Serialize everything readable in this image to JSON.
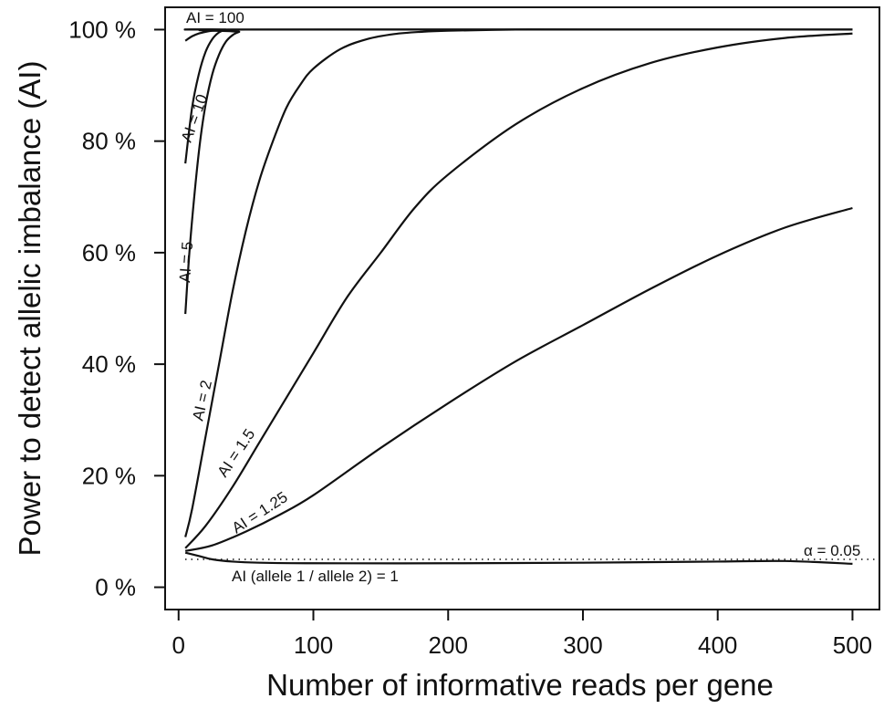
{
  "chart_data": {
    "type": "line",
    "title": "",
    "xlabel": "Number of informative reads per gene",
    "ylabel": "Power to detect allelic imbalance (AI)",
    "xlim": [
      -10,
      520
    ],
    "ylim": [
      -4,
      104
    ],
    "xticks": [
      0,
      100,
      200,
      300,
      400,
      500
    ],
    "xtick_labels": [
      "0",
      "100",
      "200",
      "300",
      "400",
      "500"
    ],
    "yticks": [
      0,
      20,
      40,
      60,
      80,
      100
    ],
    "ytick_labels": [
      "0 %",
      "20 %",
      "40 %",
      "60 %",
      "80 %",
      "100 %"
    ],
    "grid": false,
    "legend": "none",
    "series": [
      {
        "name": "AI = 100",
        "label_text": "AI = 100",
        "x": [
          5,
          10,
          15,
          20,
          25,
          30,
          35,
          40,
          500
        ],
        "y": [
          98,
          98.8,
          99.3,
          99.6,
          99.8,
          99.9,
          100,
          100,
          100
        ]
      },
      {
        "name": "AI = 10",
        "label_text": "AI = 10",
        "x": [
          5,
          10,
          15,
          20,
          25,
          30,
          35,
          40,
          500
        ],
        "y": [
          76,
          86,
          92,
          96,
          98.3,
          99.5,
          100,
          100,
          100
        ]
      },
      {
        "name": "AI = 5",
        "label_text": "AI = 5",
        "x": [
          5,
          8,
          12,
          16,
          20,
          25,
          30,
          35,
          40,
          45,
          50,
          500
        ],
        "y": [
          49,
          60,
          71,
          80,
          86.5,
          92,
          95.5,
          97.8,
          99,
          99.6,
          100,
          100
        ]
      },
      {
        "name": "AI = 2",
        "label_text": "AI = 2",
        "x": [
          5,
          10,
          20,
          30,
          40,
          50,
          60,
          70,
          80,
          90,
          100,
          120,
          140,
          160,
          180,
          200,
          250,
          300,
          500
        ],
        "y": [
          9,
          14,
          27,
          40,
          53,
          64,
          73,
          80,
          86,
          90,
          93,
          96.5,
          98.3,
          99.2,
          99.6,
          99.8,
          100,
          100,
          100
        ]
      },
      {
        "name": "AI = 1.5",
        "label_text": "AI = 1.5",
        "x": [
          5,
          20,
          40,
          60,
          80,
          100,
          125,
          150,
          175,
          200,
          250,
          300,
          350,
          400,
          450,
          500
        ],
        "y": [
          7,
          11,
          18,
          26,
          34,
          42,
          52,
          60,
          68,
          74,
          83,
          89.5,
          94,
          96.8,
          98.5,
          99.3
        ]
      },
      {
        "name": "AI = 1.25",
        "label_text": "AI = 1.25",
        "x": [
          5,
          25,
          50,
          75,
          100,
          150,
          200,
          250,
          300,
          350,
          400,
          450,
          500
        ],
        "y": [
          6.5,
          7.5,
          10,
          13,
          16.5,
          25,
          33,
          40.5,
          47,
          53.5,
          59.5,
          64.5,
          68
        ]
      },
      {
        "name": "AI (allele 1 / allele 2) = 1",
        "label_text": "AI (allele 1 / allele 2) = 1",
        "x": [
          5,
          15,
          25,
          40,
          60,
          100,
          200,
          300,
          400,
          450,
          500
        ],
        "y": [
          6.2,
          5.6,
          5,
          4.6,
          4.4,
          4.3,
          4.3,
          4.4,
          4.6,
          4.7,
          4.2
        ]
      }
    ],
    "reference_line": {
      "label_text": "α = 0.05",
      "y": 5,
      "style": "dotted"
    }
  }
}
